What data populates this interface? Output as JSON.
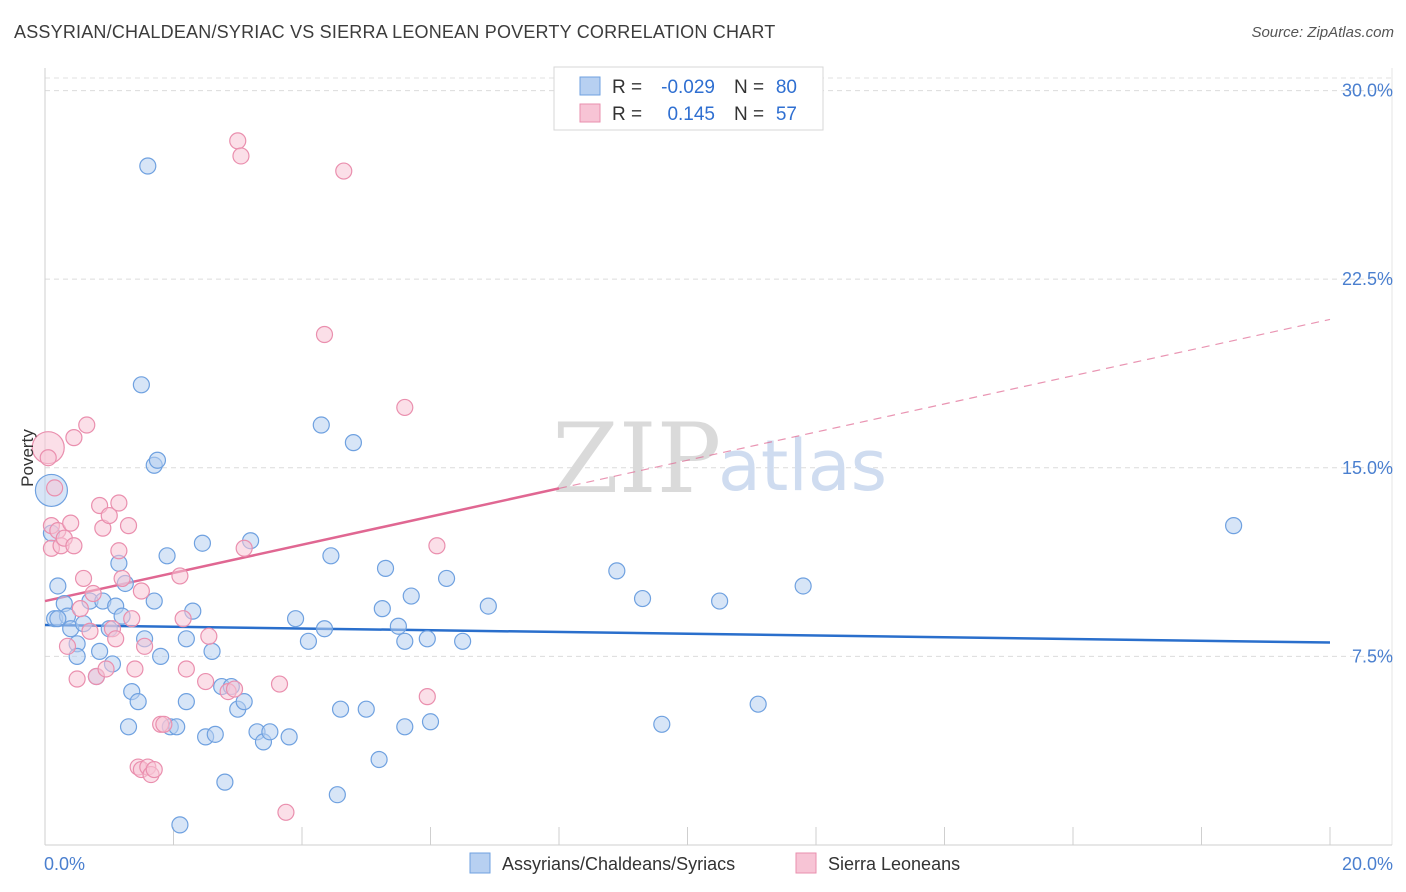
{
  "chart_data": {
    "type": "scatter",
    "title": "ASSYRIAN/CHALDEAN/SYRIAC VS SIERRA LEONEAN POVERTY CORRELATION CHART",
    "source": "Source: ZipAtlas.com",
    "ylabel": "Poverty",
    "xlabel": "",
    "xlim": [
      0,
      20
    ],
    "ylim": [
      0,
      30.5
    ],
    "x_tick_labels": [
      "0.0%",
      "20.0%"
    ],
    "y_ticks": [
      {
        "value": 30,
        "label": "30.0%"
      },
      {
        "value": 22.5,
        "label": "22.5%"
      },
      {
        "value": 15,
        "label": "15.0%"
      },
      {
        "value": 7.5,
        "label": "7.5%"
      }
    ],
    "grid": true,
    "watermark": {
      "zip": "ZIP",
      "atlas": "atlas"
    },
    "legend_box": {
      "rows": [
        {
          "r_label": "R =",
          "r_value": "-0.029",
          "n_label": "N =",
          "n_value": "80"
        },
        {
          "r_label": "R =",
          "r_value": "0.145",
          "n_label": "N =",
          "n_value": "57"
        }
      ]
    },
    "series": [
      {
        "name": "Assyrians/Chaldeans/Syriacs",
        "color": "#6fa1e0",
        "fill": "#b7d0f1",
        "trend": {
          "x0": 0,
          "y0": 8.75,
          "x1": 20,
          "y1": 8.05,
          "solid_until": 20,
          "color": "#2a6fcc"
        },
        "points": [
          [
            0.1,
            14.1
          ],
          [
            0.1,
            12.4
          ],
          [
            0.2,
            10.3
          ],
          [
            0.15,
            9.0
          ],
          [
            0.3,
            9.6
          ],
          [
            0.35,
            9.1
          ],
          [
            0.4,
            8.6
          ],
          [
            0.5,
            8.0
          ],
          [
            0.5,
            7.5
          ],
          [
            0.6,
            8.8
          ],
          [
            0.7,
            9.7
          ],
          [
            0.8,
            6.7
          ],
          [
            0.85,
            7.7
          ],
          [
            0.9,
            9.7
          ],
          [
            1.0,
            8.6
          ],
          [
            1.05,
            7.2
          ],
          [
            1.1,
            9.5
          ],
          [
            1.15,
            11.2
          ],
          [
            1.2,
            9.1
          ],
          [
            1.25,
            10.4
          ],
          [
            1.3,
            4.7
          ],
          [
            1.35,
            6.1
          ],
          [
            1.45,
            5.7
          ],
          [
            1.5,
            18.3
          ],
          [
            1.55,
            8.2
          ],
          [
            1.6,
            27.0
          ],
          [
            1.7,
            15.1
          ],
          [
            1.75,
            15.3
          ],
          [
            1.7,
            9.7
          ],
          [
            1.8,
            7.5
          ],
          [
            1.9,
            11.5
          ],
          [
            1.95,
            4.7
          ],
          [
            2.05,
            4.7
          ],
          [
            2.1,
            0.8
          ],
          [
            2.2,
            5.7
          ],
          [
            2.2,
            8.2
          ],
          [
            2.3,
            9.3
          ],
          [
            2.45,
            12.0
          ],
          [
            2.5,
            4.3
          ],
          [
            2.6,
            7.7
          ],
          [
            2.65,
            4.4
          ],
          [
            2.75,
            6.3
          ],
          [
            2.8,
            2.5
          ],
          [
            2.9,
            6.3
          ],
          [
            3.0,
            5.4
          ],
          [
            3.1,
            5.7
          ],
          [
            3.2,
            12.1
          ],
          [
            3.3,
            4.5
          ],
          [
            3.4,
            4.1
          ],
          [
            3.5,
            4.5
          ],
          [
            3.8,
            4.3
          ],
          [
            3.9,
            9.0
          ],
          [
            4.1,
            8.1
          ],
          [
            4.3,
            16.7
          ],
          [
            4.35,
            8.6
          ],
          [
            4.45,
            11.5
          ],
          [
            4.55,
            2.0
          ],
          [
            4.6,
            5.4
          ],
          [
            4.8,
            16.0
          ],
          [
            5.0,
            5.4
          ],
          [
            5.2,
            3.4
          ],
          [
            5.25,
            9.4
          ],
          [
            5.3,
            11.0
          ],
          [
            5.5,
            8.7
          ],
          [
            5.6,
            8.1
          ],
          [
            5.6,
            4.7
          ],
          [
            5.7,
            9.9
          ],
          [
            5.95,
            8.2
          ],
          [
            6.0,
            4.9
          ],
          [
            6.25,
            10.6
          ],
          [
            6.5,
            8.1
          ],
          [
            6.9,
            9.5
          ],
          [
            8.9,
            10.9
          ],
          [
            9.3,
            9.8
          ],
          [
            9.6,
            4.8
          ],
          [
            10.5,
            9.7
          ],
          [
            11.1,
            5.6
          ],
          [
            11.8,
            10.3
          ],
          [
            18.5,
            12.7
          ],
          [
            0.2,
            9.0
          ]
        ]
      },
      {
        "name": "Sierra Leoneans",
        "color": "#ea8fae",
        "fill": "#f7c4d5",
        "trend": {
          "x0": 0,
          "y0": 9.7,
          "x1": 20,
          "y1": 20.9,
          "solid_until": 8.0,
          "color": "#e06792"
        },
        "points": [
          [
            0.05,
            15.8
          ],
          [
            0.05,
            15.4
          ],
          [
            0.1,
            12.7
          ],
          [
            0.1,
            11.8
          ],
          [
            0.15,
            14.2
          ],
          [
            0.2,
            12.5
          ],
          [
            0.25,
            11.9
          ],
          [
            0.3,
            12.2
          ],
          [
            0.35,
            7.9
          ],
          [
            0.4,
            12.8
          ],
          [
            0.45,
            16.2
          ],
          [
            0.45,
            11.9
          ],
          [
            0.5,
            6.6
          ],
          [
            0.55,
            9.4
          ],
          [
            0.6,
            10.6
          ],
          [
            0.65,
            16.7
          ],
          [
            0.7,
            8.5
          ],
          [
            0.75,
            10.0
          ],
          [
            0.8,
            6.7
          ],
          [
            0.85,
            13.5
          ],
          [
            0.9,
            12.6
          ],
          [
            0.95,
            7.0
          ],
          [
            1.0,
            13.1
          ],
          [
            1.05,
            8.6
          ],
          [
            1.1,
            8.2
          ],
          [
            1.15,
            13.6
          ],
          [
            1.15,
            11.7
          ],
          [
            1.2,
            10.6
          ],
          [
            1.3,
            12.7
          ],
          [
            1.35,
            9.0
          ],
          [
            1.4,
            7.0
          ],
          [
            1.45,
            3.1
          ],
          [
            1.5,
            10.1
          ],
          [
            1.5,
            3.0
          ],
          [
            1.55,
            7.9
          ],
          [
            1.6,
            3.1
          ],
          [
            1.65,
            2.8
          ],
          [
            1.7,
            3.0
          ],
          [
            1.8,
            4.8
          ],
          [
            1.85,
            4.8
          ],
          [
            2.1,
            10.7
          ],
          [
            2.15,
            9.0
          ],
          [
            2.2,
            7.0
          ],
          [
            2.5,
            6.5
          ],
          [
            2.55,
            8.3
          ],
          [
            2.85,
            6.1
          ],
          [
            2.95,
            6.2
          ],
          [
            3.0,
            28.0
          ],
          [
            3.05,
            27.4
          ],
          [
            3.1,
            11.8
          ],
          [
            3.65,
            6.4
          ],
          [
            3.75,
            1.3
          ],
          [
            4.35,
            20.3
          ],
          [
            4.65,
            26.8
          ],
          [
            5.6,
            17.4
          ],
          [
            5.95,
            5.9
          ],
          [
            6.1,
            11.9
          ]
        ]
      }
    ]
  }
}
